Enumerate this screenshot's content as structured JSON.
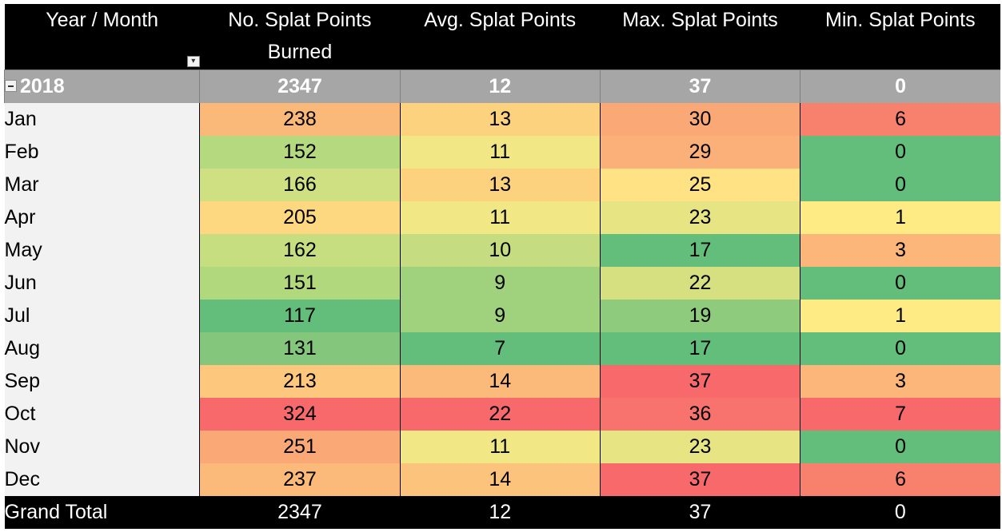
{
  "headers": {
    "row_label": "Year / Month",
    "col1_line1": "No. Splat Points",
    "col1_line2": "Burned",
    "col2": "Avg. Splat Points",
    "col3": "Max. Splat Points",
    "col4": "Min. Splat Points"
  },
  "year": {
    "label": "2018",
    "count": "2347",
    "avg": "12",
    "max": "37",
    "min": "0"
  },
  "months": [
    {
      "label": "Jan",
      "count": "238",
      "avg": "13",
      "max": "30",
      "min": "6",
      "colors": [
        "#fbb979",
        "#fdd27f",
        "#fba877",
        "#f8816e"
      ]
    },
    {
      "label": "Feb",
      "count": "152",
      "avg": "11",
      "max": "29",
      "min": "0",
      "colors": [
        "#b4d97e",
        "#f1e784",
        "#fbb079",
        "#63be7b"
      ]
    },
    {
      "label": "Mar",
      "count": "166",
      "avg": "13",
      "max": "25",
      "min": "0",
      "colors": [
        "#cfe082",
        "#fdd27f",
        "#fee283",
        "#63be7b"
      ]
    },
    {
      "label": "Apr",
      "count": "205",
      "avg": "11",
      "max": "23",
      "min": "1",
      "colors": [
        "#fed880",
        "#f1e784",
        "#e6e483",
        "#ffeb84"
      ]
    },
    {
      "label": "May",
      "count": "162",
      "avg": "10",
      "max": "17",
      "min": "3",
      "colors": [
        "#c6dd80",
        "#c5dd80",
        "#63be7b",
        "#fcb679"
      ]
    },
    {
      "label": "Jun",
      "count": "151",
      "avg": "9",
      "max": "22",
      "min": "0",
      "colors": [
        "#b2d87e",
        "#a0d17d",
        "#d6e081",
        "#63be7b"
      ]
    },
    {
      "label": "Jul",
      "count": "117",
      "avg": "9",
      "max": "19",
      "min": "1",
      "colors": [
        "#63be7b",
        "#a0d17d",
        "#8fcb7d",
        "#ffeb84"
      ]
    },
    {
      "label": "Aug",
      "count": "131",
      "avg": "7",
      "max": "17",
      "min": "0",
      "colors": [
        "#83c67c",
        "#63be7b",
        "#63be7b",
        "#63be7b"
      ]
    },
    {
      "label": "Sep",
      "count": "213",
      "avg": "14",
      "max": "37",
      "min": "3",
      "colors": [
        "#fdc87d",
        "#fcba7a",
        "#f8696b",
        "#fcb679"
      ]
    },
    {
      "label": "Oct",
      "count": "324",
      "avg": "22",
      "max": "36",
      "min": "7",
      "colors": [
        "#f8696b",
        "#f8696b",
        "#f8736d",
        "#f8696b"
      ]
    },
    {
      "label": "Nov",
      "count": "251",
      "avg": "11",
      "max": "23",
      "min": "0",
      "colors": [
        "#fba877",
        "#f1e784",
        "#e6e483",
        "#63be7b"
      ]
    },
    {
      "label": "Dec",
      "count": "237",
      "avg": "14",
      "max": "37",
      "min": "6",
      "colors": [
        "#fbba7a",
        "#fcc37c",
        "#f8696b",
        "#f8816e"
      ]
    }
  ],
  "grand_total": {
    "label": "Grand Total",
    "count": "2347",
    "avg": "12",
    "max": "37",
    "min": "0"
  }
}
